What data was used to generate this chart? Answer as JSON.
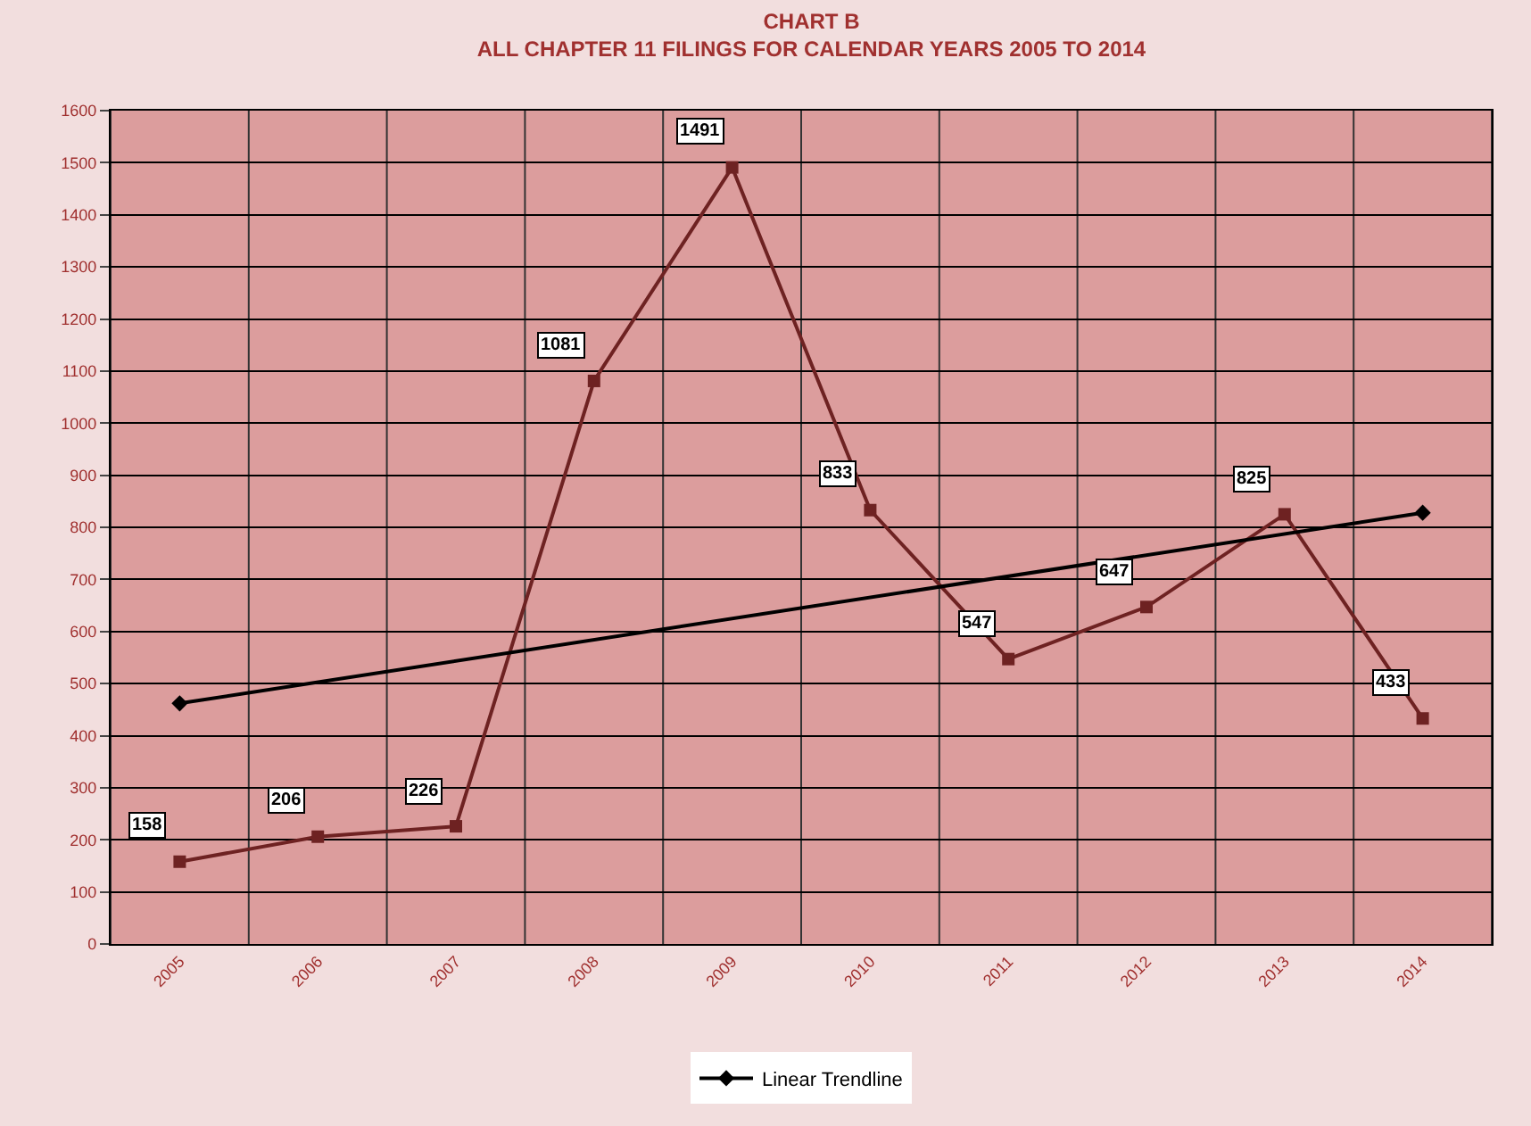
{
  "chart_data": {
    "type": "line",
    "title": "CHART B",
    "subtitle": "ALL CHAPTER 11 FILINGS FOR CALENDAR YEARS 2005 TO 2014",
    "categories": [
      "2005",
      "2006",
      "2007",
      "2008",
      "2009",
      "2010",
      "2011",
      "2012",
      "2013",
      "2014"
    ],
    "series": [
      {
        "color": "#6e2222",
        "values": [
          158,
          206,
          226,
          1081,
          1491,
          833,
          547,
          647,
          825,
          433
        ],
        "marker": "square",
        "value_labels": [
          "158",
          "206",
          "226",
          "1081",
          "1491",
          "833",
          "547",
          "647",
          "825",
          "433"
        ]
      },
      {
        "name": "Linear Trendline",
        "color": "#000000",
        "values": [
          462,
          null,
          null,
          null,
          null,
          null,
          null,
          null,
          null,
          828
        ],
        "marker": "diamond"
      }
    ],
    "ylim": [
      0,
      1600
    ],
    "yticks": [
      0,
      100,
      200,
      300,
      400,
      500,
      600,
      700,
      800,
      900,
      1000,
      1100,
      1200,
      1300,
      1400,
      1500,
      1600
    ],
    "grid": true,
    "legend": "bottom",
    "line_style": "solid"
  }
}
